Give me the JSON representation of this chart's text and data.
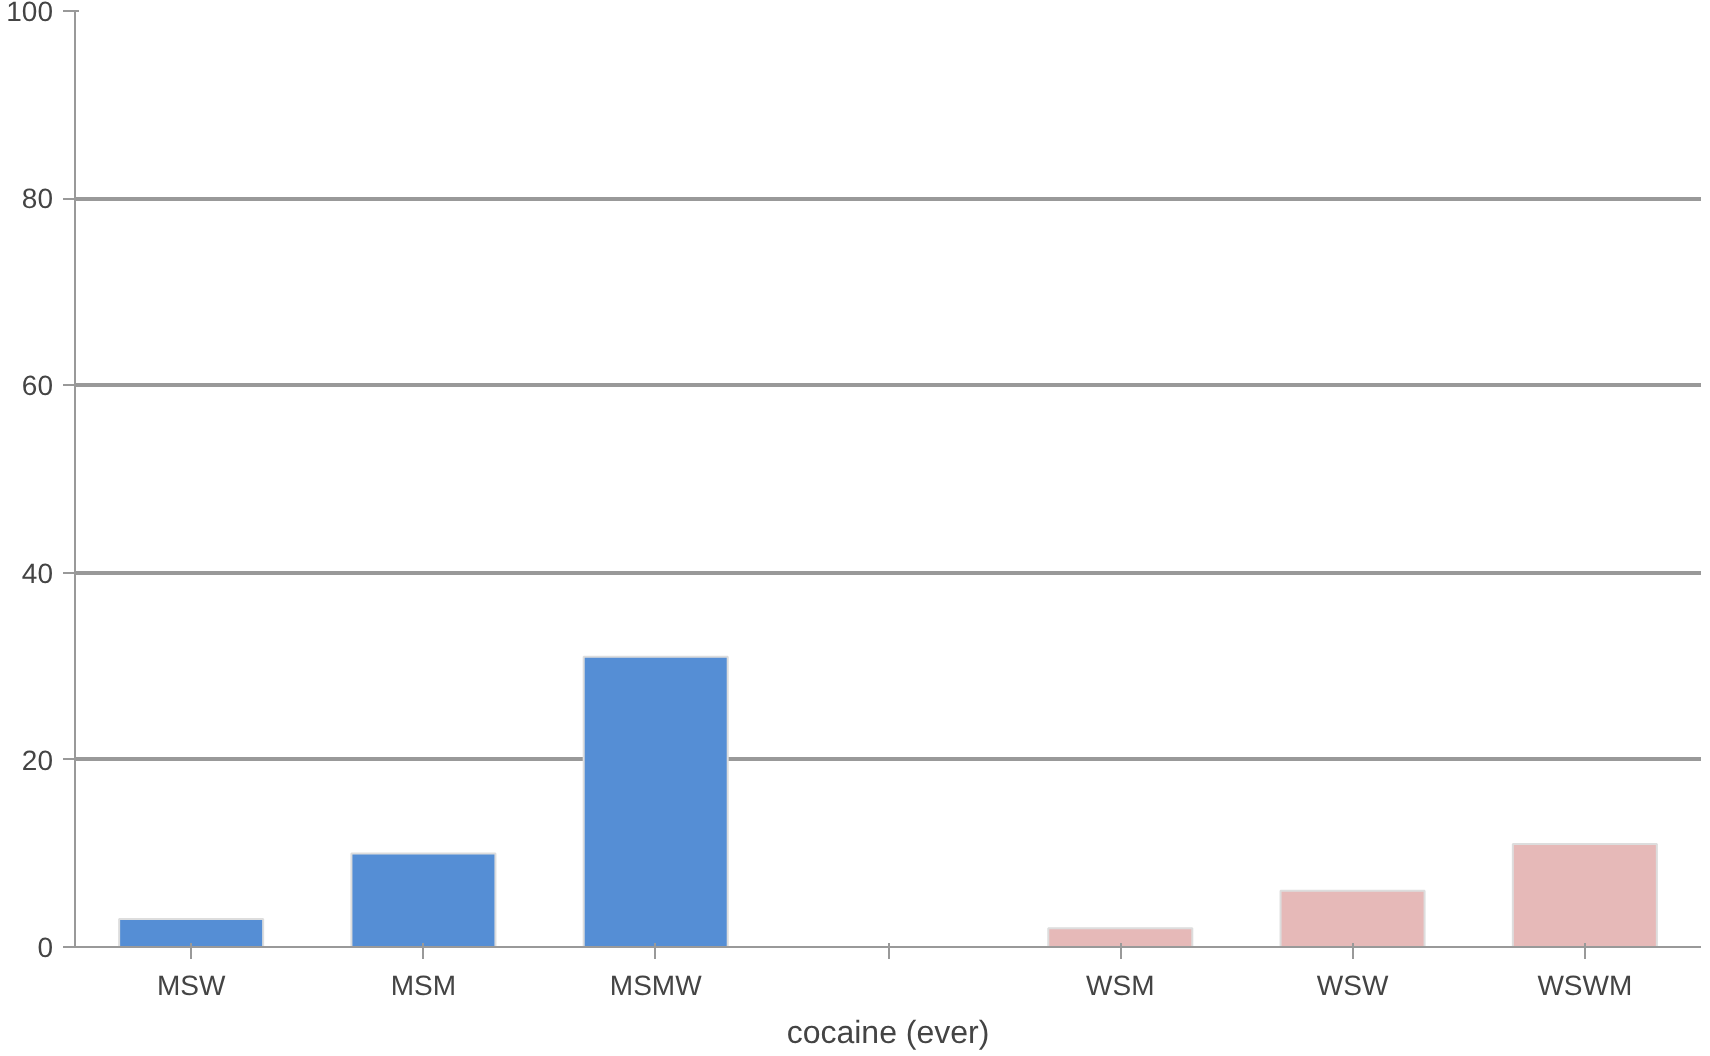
{
  "chart_data": {
    "type": "bar",
    "xlabel": "cocaine (ever)",
    "categories": [
      "MSW",
      "MSM",
      "MSMW",
      null,
      "WSM",
      "WSW",
      "WSWM"
    ],
    "values": [
      3,
      10,
      31,
      null,
      2,
      6,
      11
    ],
    "colors": [
      "#558ed5",
      "#558ed5",
      "#558ed5",
      "#558ed5",
      "#e6b9b8",
      "#e6b9b8",
      "#e6b9b8"
    ],
    "ylim": [
      0,
      100
    ],
    "yticks": [
      0,
      20,
      40,
      60,
      80,
      100
    ],
    "grid": "y"
  }
}
